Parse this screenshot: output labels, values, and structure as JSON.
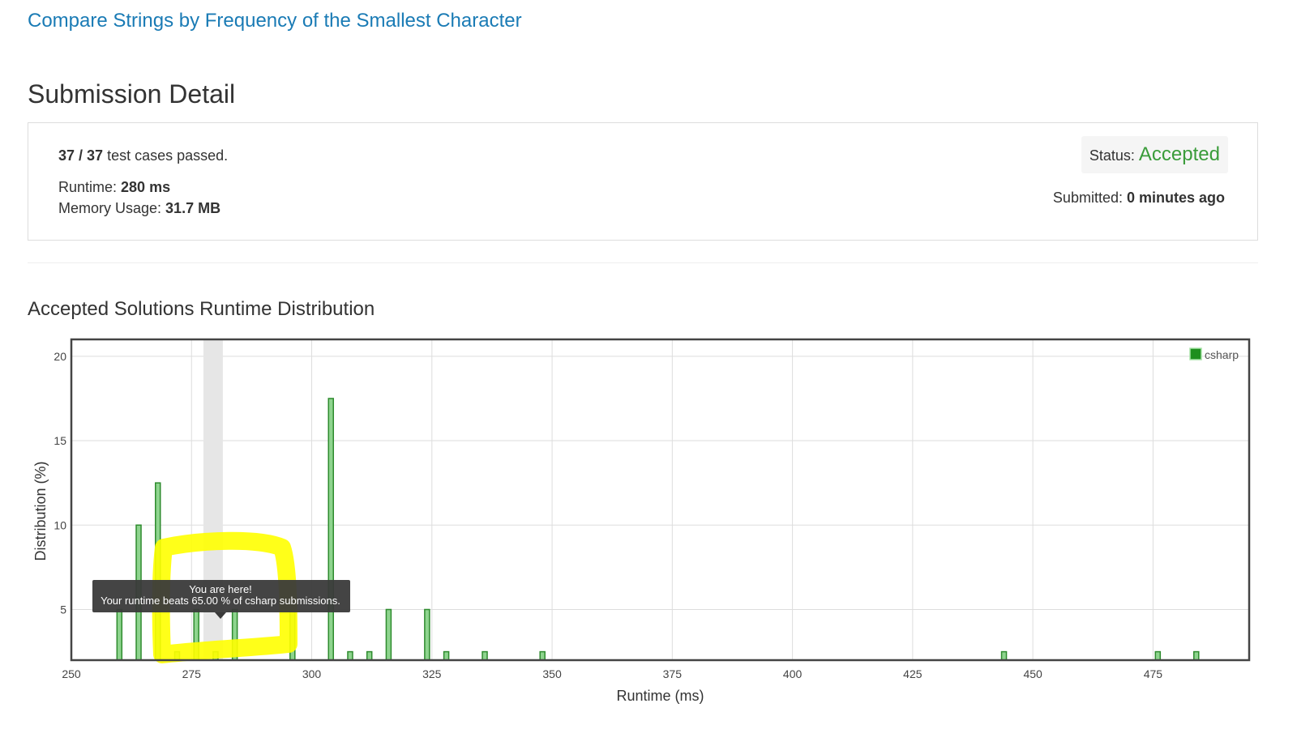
{
  "header": {
    "problem_title": "Compare Strings by Frequency of the Smallest Character",
    "page_title": "Submission Detail"
  },
  "detail": {
    "tests_passed": "37",
    "tests_sep": " / ",
    "tests_total": "37",
    "tests_suffix": " test cases passed.",
    "runtime_label": "Runtime: ",
    "runtime_value": "280 ms",
    "memory_label": "Memory Usage: ",
    "memory_value": "31.7 MB",
    "status_label": "Status: ",
    "status_value": "Accepted",
    "submitted_label": "Submitted: ",
    "submitted_value": "0 minutes ago"
  },
  "distribution": {
    "title": "Accepted Solutions Runtime Distribution",
    "tooltip_line1": "You are here!",
    "tooltip_line2": "Your runtime beats 65.00 % of csharp submissions.",
    "highlight_runtime": 280,
    "highlight_color": "#ffff00"
  },
  "chart_data": {
    "type": "bar",
    "xlabel": "Runtime (ms)",
    "ylabel": "Distribution (%)",
    "xlim": [
      250,
      495
    ],
    "ylim": [
      2,
      21
    ],
    "xticks": [
      250,
      275,
      300,
      325,
      350,
      375,
      400,
      425,
      450,
      475
    ],
    "yticks": [
      5,
      10,
      15,
      20
    ],
    "grid": true,
    "legend": "top-right",
    "series": [
      {
        "name": "csharp",
        "color": "#2e8b2e",
        "fill": "#8ed48e",
        "x": [
          260,
          264,
          268,
          272,
          276,
          280,
          284,
          296,
          304,
          308,
          312,
          316,
          324,
          328,
          336,
          348,
          444,
          476,
          484
        ],
        "values": [
          5,
          10,
          12.5,
          2.5,
          5,
          2.5,
          5,
          5,
          17.5,
          2.5,
          2.5,
          5,
          5,
          2.5,
          2.5,
          2.5,
          2.5,
          2.5,
          2.5
        ]
      }
    ]
  }
}
